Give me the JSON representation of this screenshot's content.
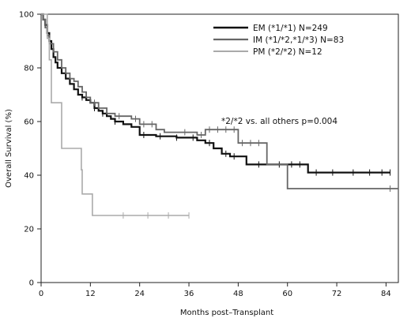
{
  "chart_data": {
    "type": "line",
    "subtype": "kaplan-meier",
    "xlabel": "Months post–Transplant",
    "ylabel": "Overall Survival (%)",
    "xlim": [
      0,
      87
    ],
    "ylim": [
      0,
      100
    ],
    "xticks": [
      0,
      12,
      24,
      36,
      48,
      60,
      72,
      84
    ],
    "yticks": [
      0,
      20,
      40,
      60,
      80,
      100
    ],
    "grid": false,
    "legend_position": "top-right",
    "annotation": "*2/*2 vs. all others p=0.004",
    "series": [
      {
        "name": "EM (*1/*1) N=249",
        "color": "#111111",
        "stroke_width": 2.2,
        "points": [
          [
            0,
            100
          ],
          [
            0.5,
            98
          ],
          [
            1,
            96
          ],
          [
            1.5,
            93
          ],
          [
            2,
            90
          ],
          [
            2.5,
            87
          ],
          [
            3,
            84
          ],
          [
            3.5,
            82
          ],
          [
            4,
            80
          ],
          [
            5,
            78
          ],
          [
            6,
            76
          ],
          [
            7,
            74
          ],
          [
            8,
            72
          ],
          [
            9,
            70
          ],
          [
            10,
            69
          ],
          [
            11,
            68
          ],
          [
            12,
            67
          ],
          [
            13,
            65
          ],
          [
            14,
            64
          ],
          [
            15,
            63
          ],
          [
            16,
            62
          ],
          [
            17,
            61
          ],
          [
            18,
            60
          ],
          [
            20,
            59
          ],
          [
            22,
            58
          ],
          [
            24,
            55
          ],
          [
            26,
            55
          ],
          [
            28,
            54.5
          ],
          [
            30,
            54.5
          ],
          [
            33,
            54
          ],
          [
            36,
            54
          ],
          [
            38,
            53
          ],
          [
            40,
            52
          ],
          [
            42,
            50
          ],
          [
            44,
            48
          ],
          [
            46,
            47
          ],
          [
            48,
            47
          ],
          [
            50,
            44
          ],
          [
            55,
            44
          ],
          [
            60,
            44
          ],
          [
            62,
            44
          ],
          [
            65,
            41
          ],
          [
            70,
            41
          ],
          [
            85,
            41
          ]
        ],
        "censors": [
          10,
          13,
          15,
          18,
          25,
          29,
          33,
          37,
          41,
          45,
          47,
          53,
          58,
          61,
          63,
          67,
          71,
          76,
          80,
          83,
          85
        ]
      },
      {
        "name": "IM (*1/*2,*1/*3) N=83",
        "color": "#666666",
        "stroke_width": 1.8,
        "points": [
          [
            0,
            100
          ],
          [
            0.5,
            98
          ],
          [
            1,
            95
          ],
          [
            1.5,
            92
          ],
          [
            2,
            89
          ],
          [
            3,
            86
          ],
          [
            4,
            83
          ],
          [
            5,
            80
          ],
          [
            6,
            78
          ],
          [
            7,
            76
          ],
          [
            8,
            75
          ],
          [
            9,
            73
          ],
          [
            10,
            71
          ],
          [
            11,
            69
          ],
          [
            12,
            67
          ],
          [
            14,
            65
          ],
          [
            16,
            63
          ],
          [
            18,
            62
          ],
          [
            20,
            62
          ],
          [
            22,
            61
          ],
          [
            24,
            59
          ],
          [
            26,
            59
          ],
          [
            28,
            57
          ],
          [
            30,
            56
          ],
          [
            36,
            56
          ],
          [
            38,
            55
          ],
          [
            40,
            57
          ],
          [
            45,
            57
          ],
          [
            48,
            52
          ],
          [
            54,
            52
          ],
          [
            55,
            44
          ],
          [
            57,
            44
          ],
          [
            60,
            35
          ],
          [
            87,
            35
          ]
        ],
        "censors": [
          13,
          19,
          23,
          25,
          27,
          35,
          39,
          41,
          43,
          45,
          47,
          49,
          51,
          53,
          85
        ]
      },
      {
        "name": "PM (*2/*2) N=12",
        "color": "#aaaaaa",
        "stroke_width": 1.6,
        "points": [
          [
            0,
            100
          ],
          [
            1.5,
            100
          ],
          [
            1.5,
            91
          ],
          [
            2,
            83
          ],
          [
            2.5,
            67
          ],
          [
            5,
            67
          ],
          [
            5,
            50
          ],
          [
            9,
            50
          ],
          [
            9.8,
            42
          ],
          [
            10,
            33
          ],
          [
            12,
            33
          ],
          [
            12.5,
            25
          ],
          [
            36,
            25
          ]
        ],
        "censors": [
          20,
          26,
          31,
          36
        ]
      }
    ]
  }
}
